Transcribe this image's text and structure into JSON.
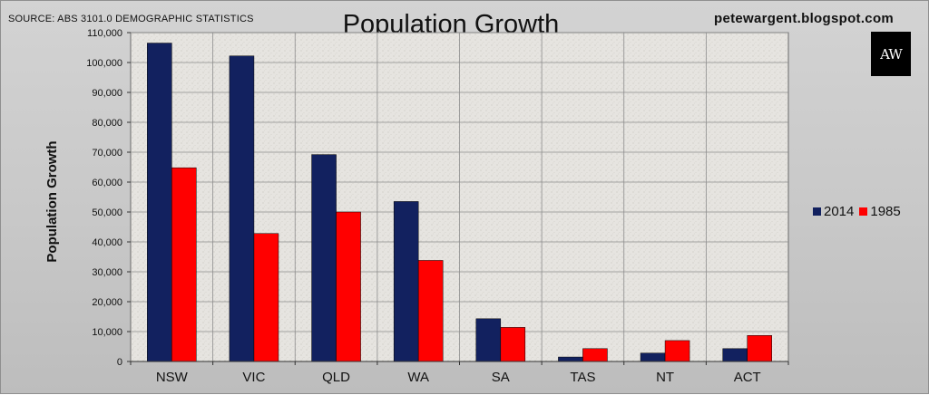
{
  "header": {
    "source": "SOURCE: ABS 3101.0 DEMOGRAPHIC STATISTICS",
    "title": "Population Growth",
    "site": "petewargent.blogspot.com",
    "logo_text": "AW"
  },
  "chart_data": {
    "type": "bar",
    "title": "Population Growth",
    "xlabel": "",
    "ylabel": "Population Growth",
    "categories": [
      "NSW",
      "VIC",
      "QLD",
      "WA",
      "SA",
      "TAS",
      "NT",
      "ACT"
    ],
    "series": [
      {
        "name": "2014",
        "color": "#12215f",
        "values": [
          106500,
          102200,
          69200,
          53500,
          14300,
          1500,
          2800,
          4300
        ]
      },
      {
        "name": "1985",
        "color": "#ff0000",
        "values": [
          64800,
          42800,
          50000,
          33800,
          11400,
          4300,
          7000,
          8700
        ]
      }
    ],
    "ylim": [
      0,
      110000
    ],
    "yticks": [
      0,
      10000,
      20000,
      30000,
      40000,
      50000,
      60000,
      70000,
      80000,
      90000,
      100000,
      110000
    ],
    "ytick_labels": [
      "0",
      "10,000",
      "20,000",
      "30,000",
      "40,000",
      "50,000",
      "60,000",
      "70,000",
      "80,000",
      "90,000",
      "100,000",
      "110,000"
    ],
    "grid": true,
    "legend_position": "right",
    "plot_background": "#e6e4e0"
  }
}
